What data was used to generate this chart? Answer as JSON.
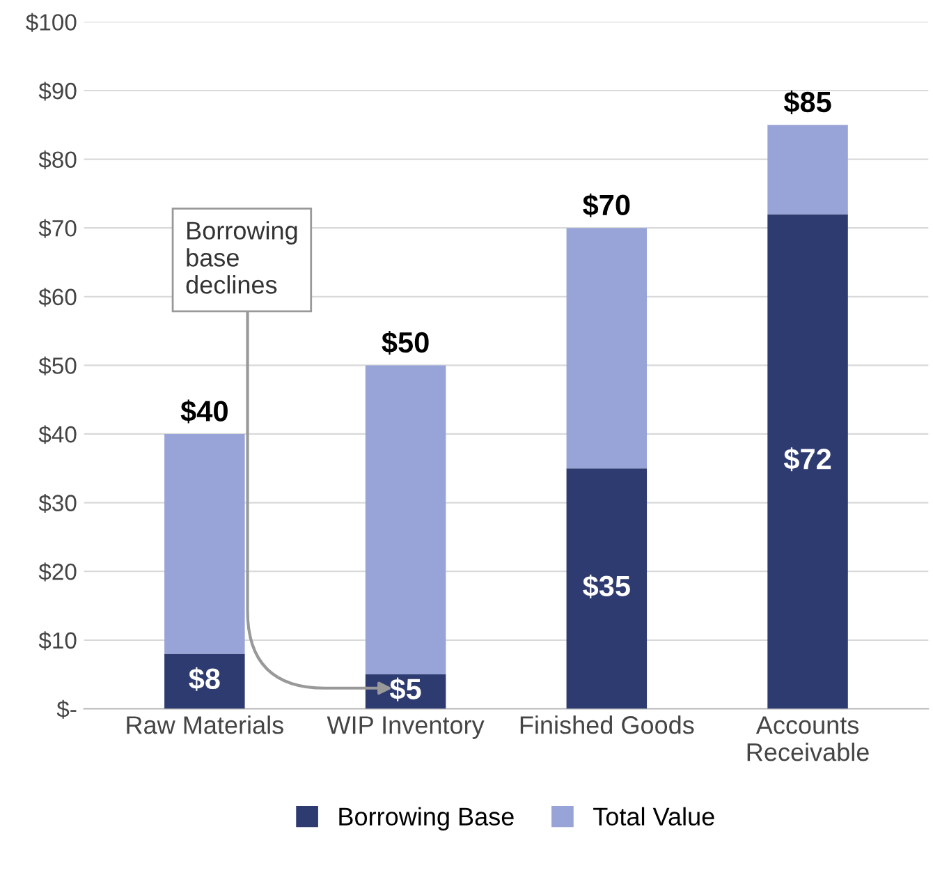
{
  "chart_data": {
    "type": "bar",
    "stacked": true,
    "categories": [
      "Raw Materials",
      "WIP Inventory",
      "Finished Goods",
      "Accounts\nReceivable"
    ],
    "series": [
      {
        "name": "Borrowing Base",
        "color": "#2e3b70",
        "values": [
          8,
          5,
          35,
          72
        ],
        "value_labels": [
          "$8",
          "$5",
          "$35",
          "$72"
        ]
      },
      {
        "name": "Total Value",
        "color": "#98a4d7",
        "values": [
          32,
          45,
          35,
          13
        ]
      }
    ],
    "totals": [
      "$40",
      "$50",
      "$70",
      "$85"
    ],
    "ylim": [
      0,
      100
    ],
    "yticks": [
      {
        "value": 0,
        "label": "$-"
      },
      {
        "value": 10,
        "label": "$10"
      },
      {
        "value": 20,
        "label": "$20"
      },
      {
        "value": 30,
        "label": "$30"
      },
      {
        "value": 40,
        "label": "$40"
      },
      {
        "value": 50,
        "label": "$50"
      },
      {
        "value": 60,
        "label": "$60"
      },
      {
        "value": 70,
        "label": "$70"
      },
      {
        "value": 80,
        "label": "$80"
      },
      {
        "value": 90,
        "label": "$90"
      },
      {
        "value": 100,
        "label": "$100"
      }
    ],
    "grid": "y",
    "legend": "bottom",
    "annotations": [
      "Borrowing base declines"
    ]
  }
}
